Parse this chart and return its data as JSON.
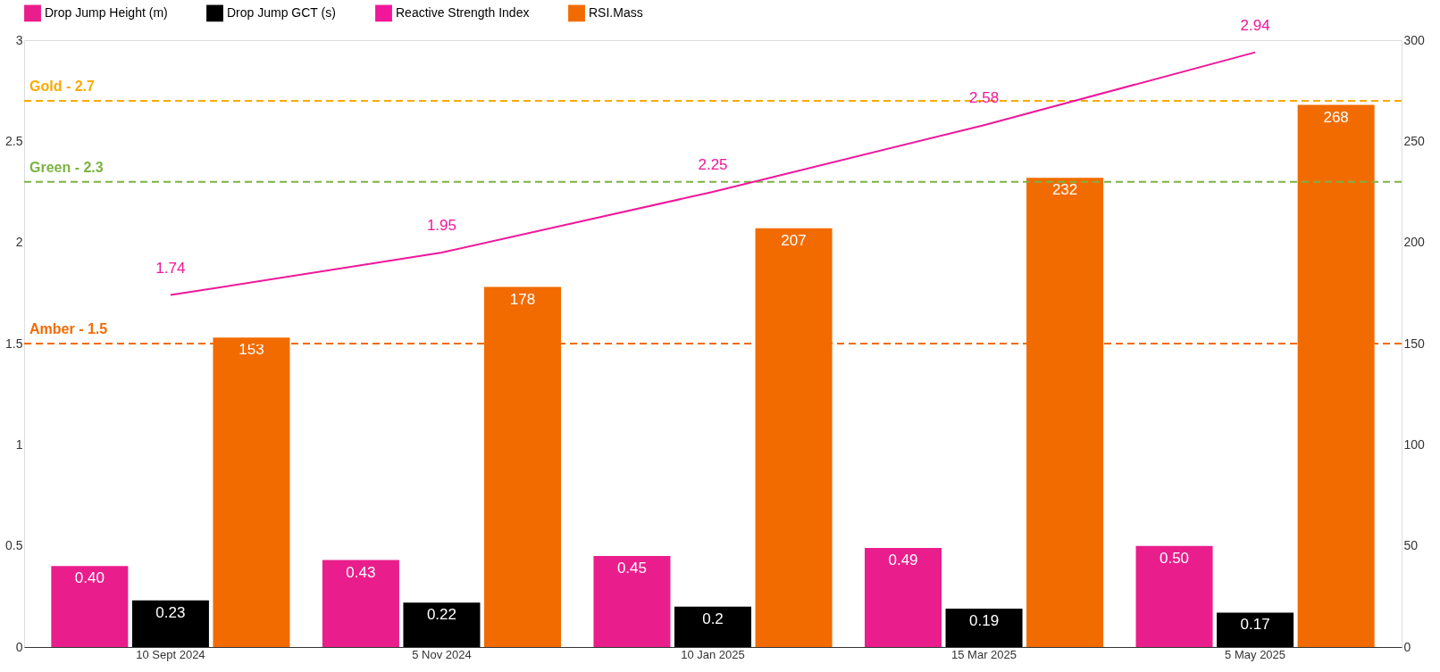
{
  "chart_data": {
    "type": "bar",
    "categories": [
      "10 Sept 2024",
      "5 Nov 2024",
      "10 Jan 2025",
      "15 Mar 2025",
      "5 May 2025"
    ],
    "series": [
      {
        "name": "Drop Jump Height (m)",
        "type": "bar",
        "color": "#e91e8c",
        "values": [
          0.4,
          0.43,
          0.45,
          0.49,
          0.5
        ],
        "value_labels": [
          "0.40",
          "0.43",
          "0.45",
          "0.49",
          "0.50"
        ]
      },
      {
        "name": "Drop Jump GCT (s)",
        "type": "bar",
        "color": "#000000",
        "values": [
          0.23,
          0.22,
          0.2,
          0.19,
          0.17
        ],
        "value_labels": [
          "0.23",
          "0.22",
          "0.2",
          "0.19",
          "0.17"
        ]
      },
      {
        "name": "Reactive Strength Index",
        "type": "line",
        "color": "#f0179a",
        "values": [
          1.74,
          1.95,
          2.25,
          2.58,
          2.94
        ],
        "value_labels": [
          "1.74",
          "1.95",
          "2.25",
          "2.58",
          "2.94"
        ]
      },
      {
        "name": "RSI.Mass",
        "type": "bar",
        "axis": "y2",
        "color": "#f26b00",
        "values": [
          153,
          178,
          207,
          232,
          268
        ],
        "value_labels": [
          "153",
          "178",
          "207",
          "232",
          "268"
        ]
      }
    ],
    "ylim": [
      0,
      3
    ],
    "yticks": [
      0,
      0.5,
      1,
      1.5,
      2,
      2.5,
      3
    ],
    "y2lim": [
      0,
      300
    ],
    "y2ticks": [
      0,
      50,
      100,
      150,
      200,
      250,
      300
    ],
    "ref_lines": [
      {
        "axis": "y",
        "value": 2.7,
        "label": "Gold - 2.7",
        "color": "#f9ab00",
        "line_style": "dashed"
      },
      {
        "axis": "y",
        "value": 2.3,
        "label": "Green - 2.3",
        "color": "#7cb342",
        "line_style": "dashed"
      },
      {
        "axis": "y",
        "value": 1.5,
        "label": "Amber - 1.5",
        "color": "#f26b00",
        "line_style": "dashed"
      }
    ],
    "legend": "top",
    "grid": false
  }
}
